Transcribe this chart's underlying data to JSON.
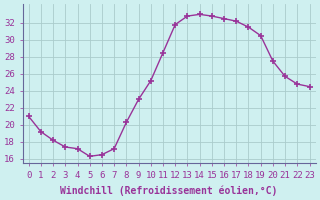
{
  "x": [
    0,
    1,
    2,
    3,
    4,
    5,
    6,
    7,
    8,
    9,
    10,
    11,
    12,
    13,
    14,
    15,
    16,
    17,
    18,
    19,
    20,
    21,
    22,
    23
  ],
  "y": [
    21.0,
    19.2,
    18.2,
    17.4,
    17.2,
    16.3,
    16.5,
    17.2,
    20.3,
    23.0,
    25.2,
    28.5,
    31.8,
    32.8,
    33.0,
    32.8,
    32.5,
    32.2,
    31.5,
    30.5,
    27.5,
    25.7,
    24.8,
    24.5
  ],
  "line_color": "#993399",
  "marker": "+",
  "marker_size": 4,
  "marker_lw": 1.2,
  "bg_color": "#cff0f0",
  "grid_color": "#aacccc",
  "xlabel": "Windchill (Refroidissement éolien,°C)",
  "ylim": [
    15.5,
    34.2
  ],
  "xlim": [
    -0.5,
    23.5
  ],
  "yticks": [
    16,
    18,
    20,
    22,
    24,
    26,
    28,
    30,
    32
  ],
  "xticks": [
    0,
    1,
    2,
    3,
    4,
    5,
    6,
    7,
    8,
    9,
    10,
    11,
    12,
    13,
    14,
    15,
    16,
    17,
    18,
    19,
    20,
    21,
    22,
    23
  ],
  "font_color": "#993399",
  "font_size": 6.5,
  "xlabel_fontsize": 7.0,
  "line_width": 1.0
}
